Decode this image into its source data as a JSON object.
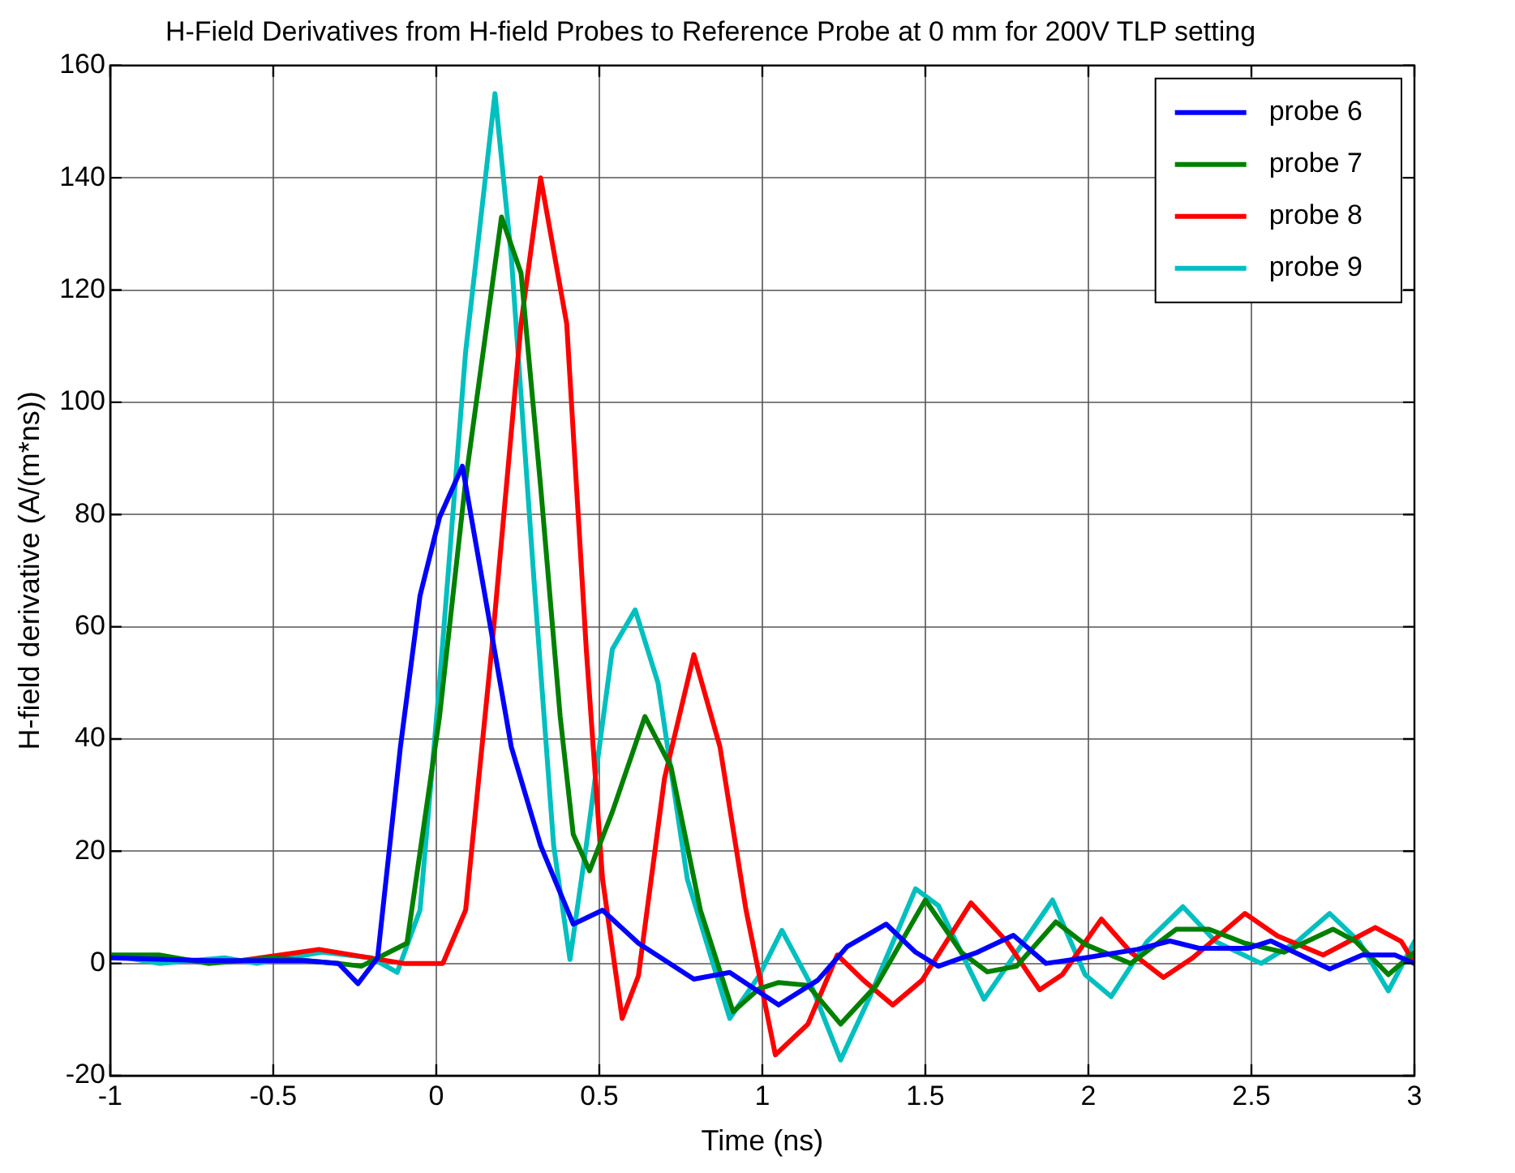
{
  "chart_data": {
    "type": "line",
    "title": "H-Field Derivatives from H-field Probes to Reference Probe at 0 mm for 200V TLP setting",
    "xlabel": "Time (ns)",
    "ylabel": "H-field derivative (A/(m*ns))",
    "xlim": [
      -1,
      3
    ],
    "xticks": [
      -1,
      -0.5,
      0,
      0.5,
      1,
      1.5,
      2,
      2.5,
      3
    ],
    "ylim": [
      -20,
      160
    ],
    "yticks": [
      -20,
      0,
      20,
      40,
      60,
      80,
      100,
      120,
      140,
      160
    ],
    "grid": true,
    "legend": "top right",
    "marker": "none",
    "line_style": "solid",
    "series": [
      {
        "name": "probe 6",
        "color": "#0000ff",
        "x": [
          -1,
          -0.7,
          -0.4,
          -0.3,
          -0.24,
          -0.18,
          -0.11,
          -0.05,
          0.01,
          0.08,
          0.16,
          0.23,
          0.32,
          0.42,
          0.51,
          0.62,
          0.79,
          0.9,
          1.05,
          1.17,
          1.26,
          1.38,
          1.47,
          1.54,
          1.66,
          1.77,
          1.87,
          1.99,
          2.15,
          2.25,
          2.34,
          2.49,
          2.56,
          2.74,
          2.84,
          2.94,
          3
        ],
        "values": [
          1,
          0.5,
          0.5,
          0,
          -3.6,
          1,
          38.6,
          65.5,
          79.5,
          88.6,
          62,
          38.6,
          21,
          7,
          9.5,
          3.6,
          -2.8,
          -1.6,
          -7.4,
          -3,
          3,
          7,
          2,
          -0.5,
          2,
          5,
          0,
          1,
          2.5,
          4,
          2.7,
          2.7,
          4,
          -1,
          1.5,
          1.5,
          0
        ]
      },
      {
        "name": "probe 7",
        "color": "#008000",
        "x": [
          -1,
          -0.85,
          -0.7,
          -0.5,
          -0.3,
          -0.23,
          -0.09,
          0.01,
          0.09,
          0.2,
          0.26,
          0.32,
          0.38,
          0.42,
          0.47,
          0.54,
          0.64,
          0.72,
          0.81,
          0.91,
          0.99,
          1.05,
          1.14,
          1.24,
          1.35,
          1.5,
          1.61,
          1.69,
          1.78,
          1.9,
          1.99,
          2.13,
          2.27,
          2.37,
          2.48,
          2.6,
          2.75,
          2.82,
          2.92,
          3
        ],
        "values": [
          1.5,
          1.5,
          0,
          1,
          0,
          -0.5,
          3.6,
          44,
          86,
          133,
          123,
          85,
          44,
          23,
          16.5,
          27,
          44,
          35,
          9.5,
          -8.6,
          -4.5,
          -3.4,
          -3.9,
          -10.8,
          -3.9,
          11.3,
          2,
          -1.5,
          -0.5,
          7.4,
          3.4,
          0,
          6.1,
          6.1,
          3.6,
          2,
          6.1,
          3.9,
          -2,
          2
        ]
      },
      {
        "name": "probe 8",
        "color": "#ff0000",
        "x": [
          -0.6,
          -0.36,
          -0.1,
          0.02,
          0.09,
          0.17,
          0.26,
          0.32,
          0.4,
          0.46,
          0.51,
          0.57,
          0.62,
          0.7,
          0.79,
          0.87,
          0.95,
          1.04,
          1.14,
          1.23,
          1.31,
          1.4,
          1.49,
          1.64,
          1.75,
          1.85,
          1.92,
          2.04,
          2.13,
          2.23,
          2.32,
          2.48,
          2.58,
          2.72,
          2.88,
          2.96,
          3
        ],
        "values": [
          0.5,
          2.5,
          0,
          0,
          9.5,
          56,
          114,
          140,
          114,
          56,
          15,
          -9.8,
          -2.2,
          33,
          55,
          38.6,
          9.5,
          -16.3,
          -10.8,
          1.5,
          -3,
          -7.4,
          -3,
          10.8,
          3.9,
          -4.7,
          -2,
          7.9,
          2,
          -2.5,
          1,
          8.9,
          4.9,
          1.5,
          6.4,
          3.9,
          0
        ]
      },
      {
        "name": "probe 9",
        "color": "#00bfbf",
        "x": [
          -1,
          -0.85,
          -0.65,
          -0.55,
          -0.35,
          -0.2,
          -0.12,
          -0.05,
          0.01,
          0.09,
          0.18,
          0.23,
          0.3,
          0.36,
          0.41,
          0.46,
          0.54,
          0.61,
          0.68,
          0.77,
          0.9,
          0.99,
          1.06,
          1.15,
          1.24,
          1.33,
          1.47,
          1.54,
          1.68,
          1.78,
          1.89,
          1.99,
          2.07,
          2.18,
          2.29,
          2.39,
          2.53,
          2.64,
          2.74,
          2.83,
          2.92,
          3
        ],
        "values": [
          1.5,
          0,
          1,
          0,
          2,
          1,
          -1.6,
          9.5,
          50,
          109,
          155,
          126,
          68,
          21,
          0.7,
          21,
          56,
          63,
          50,
          15,
          -9.8,
          -2.2,
          5.9,
          -3.9,
          -17.2,
          -5.9,
          13.3,
          10.3,
          -6.4,
          2,
          11.3,
          -2,
          -5.9,
          3.9,
          10.1,
          3.9,
          0,
          3.9,
          8.9,
          3.9,
          -4.9,
          3.9
        ]
      }
    ]
  }
}
